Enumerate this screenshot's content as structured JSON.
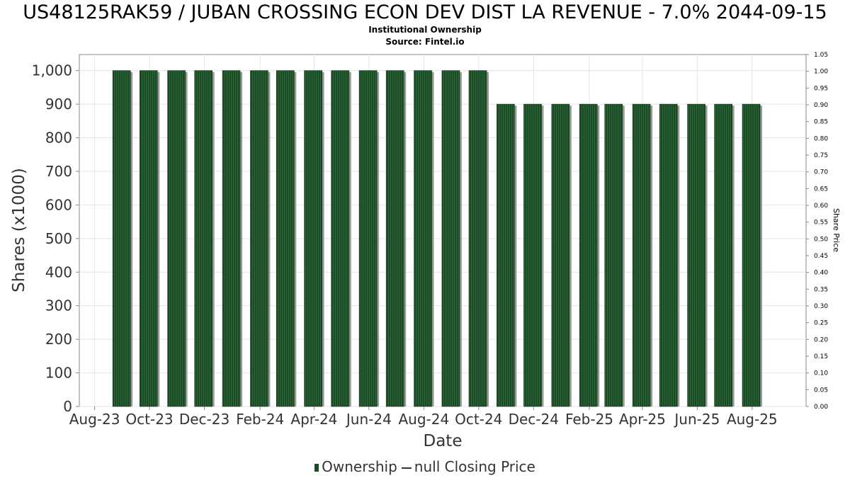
{
  "chart_data": {
    "type": "bar",
    "title": "US48125RAK59 / JUBAN CROSSING ECON DEV DIST LA REVENUE - 7.0% 2044-09-15",
    "subtitle_line1": "Institutional Ownership",
    "subtitle_line2": "Source: Fintel.io",
    "xlabel": "Date",
    "ylabel": "Shares (x1000)",
    "y2label": "Share Price",
    "x_tick_labels": [
      "Aug-23",
      "Oct-23",
      "Dec-23",
      "Feb-24",
      "Apr-24",
      "Jun-24",
      "Aug-24",
      "Oct-24",
      "Dec-24",
      "Feb-25",
      "Apr-25",
      "Jun-25",
      "Aug-25"
    ],
    "x_range": [
      "2023-07-15",
      "2025-09-30"
    ],
    "ylim": [
      0,
      1000
    ],
    "y_ticks": [
      "0",
      "100",
      "200",
      "300",
      "400",
      "500",
      "600",
      "700",
      "800",
      "900",
      "1,000"
    ],
    "y2lim": [
      0,
      1.05
    ],
    "y2_ticks": [
      "0.00",
      "0.05",
      "0.10",
      "0.15",
      "0.20",
      "0.25",
      "0.30",
      "0.35",
      "0.40",
      "0.45",
      "0.50",
      "0.55",
      "0.60",
      "0.65",
      "0.70",
      "0.75",
      "0.80",
      "0.85",
      "0.90",
      "0.95",
      "1.00",
      "1.05"
    ],
    "grid": true,
    "legend_position": "bottom",
    "series": [
      {
        "name": "Ownership",
        "color": "#1c4a26",
        "x": [
          "2023-08-31",
          "2023-09-30",
          "2023-10-31",
          "2023-11-30",
          "2023-12-31",
          "2024-01-31",
          "2024-02-29",
          "2024-03-31",
          "2024-04-30",
          "2024-05-31",
          "2024-06-30",
          "2024-07-31",
          "2024-08-31",
          "2024-09-30",
          "2024-10-31",
          "2024-11-30",
          "2024-12-31",
          "2025-01-31",
          "2025-02-28",
          "2025-03-31",
          "2025-04-30",
          "2025-05-31",
          "2025-06-30",
          "2025-07-31"
        ],
        "values": [
          1000,
          1000,
          1000,
          1000,
          1000,
          1000,
          1000,
          1000,
          1000,
          1000,
          1000,
          1000,
          1000,
          1000,
          900,
          900,
          900,
          900,
          900,
          900,
          900,
          900,
          900,
          900
        ]
      }
    ],
    "legend": {
      "ownership_label": "Ownership",
      "price_label": "null Closing Price"
    }
  }
}
